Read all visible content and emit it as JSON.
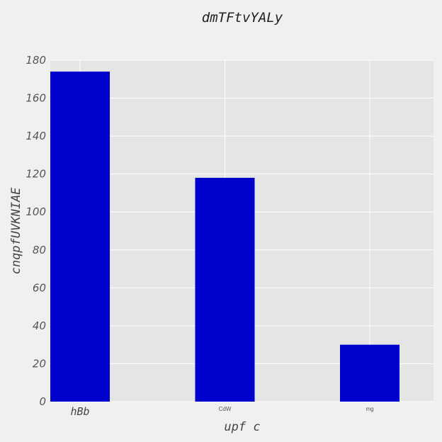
{
  "chart_data": {
    "type": "bar",
    "title": "dmTFtvYALy",
    "xlabel": "upf c",
    "ylabel": "cnqpfUVKNIAE",
    "categories": [
      "hBb",
      "CdW",
      "mg"
    ],
    "values": [
      174,
      118,
      30
    ],
    "ylim": [
      0,
      180
    ],
    "yticks": [
      0,
      20,
      40,
      60,
      80,
      100,
      120,
      140,
      160,
      180
    ],
    "grid": true,
    "bar_color": "#0000cc",
    "plot_background": "#e5e5e5",
    "grid_color": "#ffffff"
  }
}
